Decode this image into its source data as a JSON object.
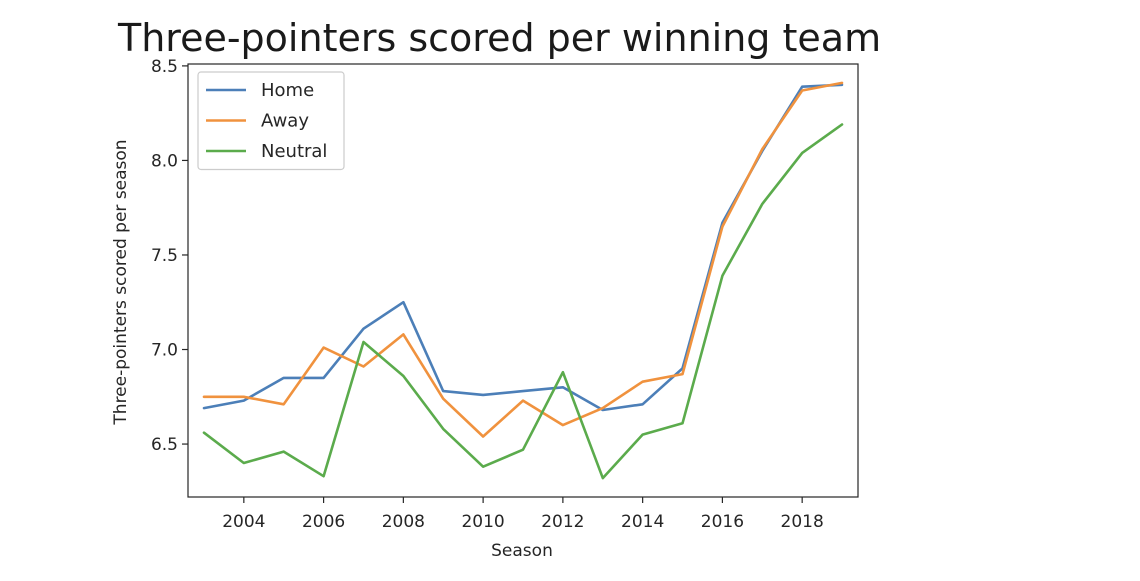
{
  "chart_data": {
    "type": "line",
    "title": "Three-pointers scored per winning team",
    "xlabel": "Season",
    "ylabel": "Three-pointers scored per season",
    "xlim": [
      2002.6,
      2019.4
    ],
    "ylim": [
      6.22,
      8.51
    ],
    "xticks": [
      2004,
      2006,
      2008,
      2010,
      2012,
      2014,
      2016,
      2018
    ],
    "yticks": [
      6.5,
      7.0,
      7.5,
      8.0,
      8.5
    ],
    "grid": false,
    "legend_position": "top-left",
    "x": [
      2003,
      2004,
      2005,
      2006,
      2007,
      2008,
      2009,
      2010,
      2011,
      2012,
      2013,
      2014,
      2015,
      2016,
      2017,
      2018,
      2019
    ],
    "series": [
      {
        "name": "Home",
        "color": "#4c7fb8",
        "values": [
          6.69,
          6.73,
          6.85,
          6.85,
          7.11,
          7.25,
          6.78,
          6.76,
          6.78,
          6.8,
          6.68,
          6.71,
          6.9,
          7.67,
          8.05,
          8.39,
          8.4
        ]
      },
      {
        "name": "Away",
        "color": "#f0923e",
        "values": [
          6.75,
          6.75,
          6.71,
          7.01,
          6.91,
          7.08,
          6.74,
          6.54,
          6.73,
          6.6,
          6.69,
          6.83,
          6.87,
          7.65,
          8.06,
          8.37,
          8.41
        ]
      },
      {
        "name": "Neutral",
        "color": "#5bab4c",
        "values": [
          6.56,
          6.4,
          6.46,
          6.33,
          7.04,
          6.86,
          6.58,
          6.38,
          6.47,
          6.88,
          6.32,
          6.55,
          6.61,
          7.39,
          7.77,
          8.04,
          8.19
        ]
      }
    ]
  }
}
